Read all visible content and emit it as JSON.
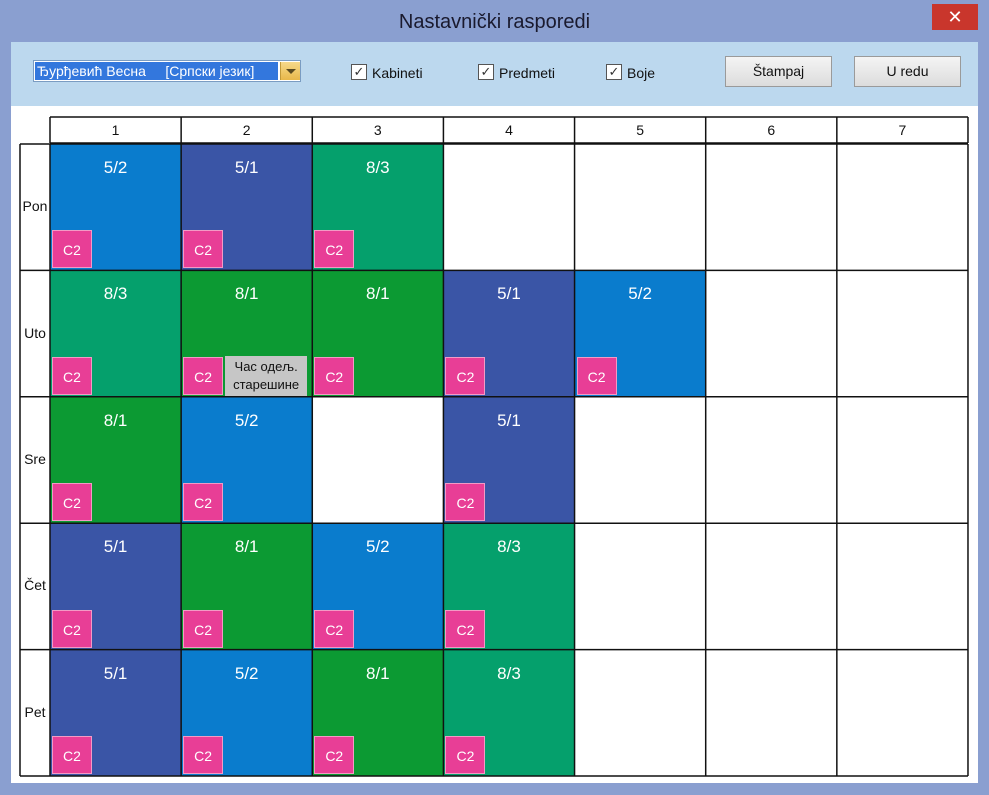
{
  "window": {
    "title": "Nastavnički rasporedi",
    "close_label": "✕"
  },
  "toolbar": {
    "teacher_value": "Ђурђевић Весна     [Српски језик]",
    "checkboxes": [
      {
        "label": "Kabineti",
        "checked": true
      },
      {
        "label": "Predmeti",
        "checked": true
      },
      {
        "label": "Boje",
        "checked": true
      }
    ],
    "print_label": "Štampaj",
    "ok_label": "U redu"
  },
  "schedule": {
    "periods": [
      "1",
      "2",
      "3",
      "4",
      "5",
      "6",
      "7"
    ],
    "days": [
      "Pon",
      "Uto",
      "Sre",
      "Čet",
      "Pet"
    ],
    "colors": {
      "blue": "#0a7ccd",
      "navy": "#3a55a6",
      "green": "#0c9a33",
      "teal": "#05a06c",
      "room": "#e83e96"
    },
    "lessons": [
      {
        "day": 0,
        "period": 0,
        "class": "5/2",
        "room": "C2",
        "color": "blue"
      },
      {
        "day": 0,
        "period": 1,
        "class": "5/1",
        "room": "C2",
        "color": "navy"
      },
      {
        "day": 0,
        "period": 2,
        "class": "8/3",
        "room": "C2",
        "color": "teal"
      },
      {
        "day": 1,
        "period": 0,
        "class": "8/3",
        "room": "C2",
        "color": "teal"
      },
      {
        "day": 1,
        "period": 1,
        "class": "8/1",
        "room": "C2",
        "color": "green",
        "note": "Час одељ. старешине"
      },
      {
        "day": 1,
        "period": 2,
        "class": "8/1",
        "room": "C2",
        "color": "green"
      },
      {
        "day": 1,
        "period": 3,
        "class": "5/1",
        "room": "C2",
        "color": "navy"
      },
      {
        "day": 1,
        "period": 4,
        "class": "5/2",
        "room": "C2",
        "color": "blue"
      },
      {
        "day": 2,
        "period": 0,
        "class": "8/1",
        "room": "C2",
        "color": "green"
      },
      {
        "day": 2,
        "period": 1,
        "class": "5/2",
        "room": "C2",
        "color": "blue"
      },
      {
        "day": 2,
        "period": 3,
        "class": "5/1",
        "room": "C2",
        "color": "navy"
      },
      {
        "day": 3,
        "period": 0,
        "class": "5/1",
        "room": "C2",
        "color": "navy"
      },
      {
        "day": 3,
        "period": 1,
        "class": "8/1",
        "room": "C2",
        "color": "green"
      },
      {
        "day": 3,
        "period": 2,
        "class": "5/2",
        "room": "C2",
        "color": "blue"
      },
      {
        "day": 3,
        "period": 3,
        "class": "8/3",
        "room": "C2",
        "color": "teal"
      },
      {
        "day": 4,
        "period": 0,
        "class": "5/1",
        "room": "C2",
        "color": "navy"
      },
      {
        "day": 4,
        "period": 1,
        "class": "5/2",
        "room": "C2",
        "color": "blue"
      },
      {
        "day": 4,
        "period": 2,
        "class": "8/1",
        "room": "C2",
        "color": "green"
      },
      {
        "day": 4,
        "period": 3,
        "class": "8/3",
        "room": "C2",
        "color": "teal"
      }
    ]
  }
}
